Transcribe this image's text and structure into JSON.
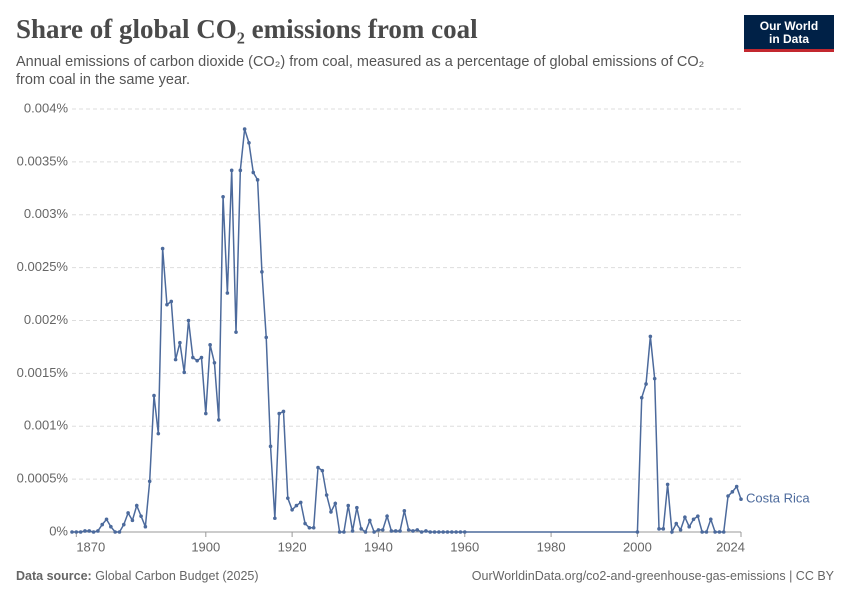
{
  "chart_data": {
    "type": "line",
    "title": "Share of global CO₂ emissions from coal",
    "subtitle": "Annual emissions of carbon dioxide (CO₂) from coal, measured as a percentage of global emissions of CO₂ from coal in the same year.",
    "logo": [
      "Our World",
      "in Data"
    ],
    "source_label": "Data source:",
    "source": "Global Carbon Budget (2025)",
    "url": "OurWorldinData.org/co2-and-greenhouse-gas-emissions | CC BY",
    "x": [
      1869,
      1870,
      1871,
      1872,
      1873,
      1874,
      1875,
      1876,
      1877,
      1878,
      1879,
      1880,
      1881,
      1882,
      1883,
      1884,
      1885,
      1886,
      1887,
      1888,
      1889,
      1890,
      1891,
      1892,
      1893,
      1894,
      1895,
      1896,
      1897,
      1898,
      1899,
      1900,
      1901,
      1902,
      1903,
      1904,
      1905,
      1906,
      1907,
      1908,
      1909,
      1910,
      1911,
      1912,
      1913,
      1914,
      1915,
      1916,
      1917,
      1918,
      1919,
      1920,
      1921,
      1922,
      1923,
      1924,
      1925,
      1926,
      1927,
      1928,
      1929,
      1930,
      1931,
      1932,
      1933,
      1934,
      1935,
      1936,
      1937,
      1938,
      1939,
      1940,
      1941,
      1942,
      1943,
      1944,
      1945,
      1946,
      1947,
      1948,
      1949,
      1950,
      1951,
      1952,
      1953,
      1954,
      1955,
      1956,
      1957,
      1958,
      1959,
      1960,
      2000,
      2001,
      2002,
      2003,
      2004,
      2005,
      2006,
      2007,
      2008,
      2009,
      2010,
      2011,
      2012,
      2013,
      2014,
      2015,
      2016,
      2017,
      2018,
      2019,
      2020,
      2021,
      2022,
      2023,
      2024
    ],
    "series": [
      {
        "name": "Costa Rica",
        "color": "#4c6a9c",
        "values": [
          0,
          0,
          0,
          1e-05,
          1e-05,
          0,
          1e-05,
          7e-05,
          0.00012,
          5e-05,
          0,
          0,
          7e-05,
          0.00018,
          0.00011,
          0.00025,
          0.00015,
          5e-05,
          0.00048,
          0.00129,
          0.00093,
          0.00268,
          0.00215,
          0.00218,
          0.00163,
          0.00179,
          0.00151,
          0.002,
          0.00165,
          0.00162,
          0.00165,
          0.00112,
          0.00177,
          0.0016,
          0.00106,
          0.00317,
          0.00226,
          0.00342,
          0.00189,
          0.00342,
          0.00381,
          0.00368,
          0.0034,
          0.00333,
          0.00246,
          0.00184,
          0.00081,
          0.00013,
          0.00112,
          0.00114,
          0.00032,
          0.00021,
          0.00025,
          0.00028,
          8e-05,
          4e-05,
          4e-05,
          0.00061,
          0.00058,
          0.00035,
          0.00019,
          0.00027,
          0,
          0,
          0.00025,
          1e-05,
          0.00023,
          3e-05,
          0,
          0.00011,
          0,
          2e-05,
          2e-05,
          0.00015,
          1e-05,
          1e-05,
          1e-05,
          0.0002,
          2e-05,
          1e-05,
          2e-05,
          0,
          1e-05,
          0,
          0,
          0,
          0,
          0,
          0,
          0,
          0,
          0,
          0,
          0.00127,
          0.0014,
          0.00185,
          0.00145,
          3e-05,
          3e-05,
          0.00045,
          0,
          8e-05,
          2e-05,
          0.00014,
          5e-05,
          0.00012,
          0.00015,
          0,
          0,
          0.00012,
          0,
          0,
          0,
          0.00034,
          0.00038,
          0.00043,
          0.00031
        ]
      }
    ],
    "xlim": [
      1869,
      2024
    ],
    "xticks": [
      1870,
      1900,
      1920,
      1940,
      1960,
      1980,
      2000,
      2024
    ],
    "ylim": [
      0,
      0.004
    ],
    "yticks": [
      {
        "value": 0,
        "label": "0%"
      },
      {
        "value": 0.0005,
        "label": "0.0005%"
      },
      {
        "value": 0.001,
        "label": "0.001%"
      },
      {
        "value": 0.0015,
        "label": "0.0015%"
      },
      {
        "value": 0.002,
        "label": "0.002%"
      },
      {
        "value": 0.0025,
        "label": "0.0025%"
      },
      {
        "value": 0.003,
        "label": "0.003%"
      },
      {
        "value": 0.0035,
        "label": "0.0035%"
      },
      {
        "value": 0.004,
        "label": "0.004%"
      }
    ],
    "grid": true
  }
}
